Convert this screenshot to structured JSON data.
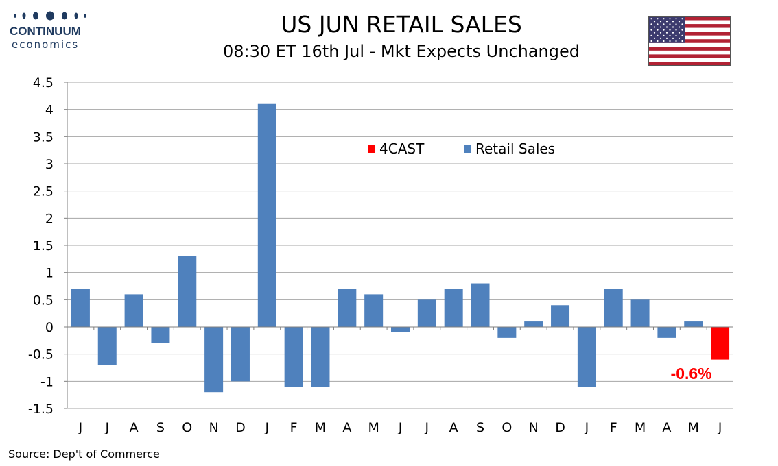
{
  "header": {
    "brand_name": "CONTINUUM",
    "brand_sub": "economics",
    "title": "US JUN RETAIL SALES",
    "subtitle": "08:30 ET 16th Jul - Mkt Expects Unchanged"
  },
  "footer": {
    "source": "Source: Dep't of Commerce"
  },
  "colors": {
    "retail": "#4f81bd",
    "forecast": "#ff0000",
    "brand": "#1f3a5f"
  },
  "icons": {
    "logo": "continuum-economics-logo",
    "flag": "us-flag-icon"
  },
  "chart_data": {
    "type": "bar",
    "categories": [
      "J",
      "J",
      "A",
      "S",
      "O",
      "N",
      "D",
      "J",
      "F",
      "M",
      "A",
      "M",
      "J",
      "J",
      "A",
      "S",
      "O",
      "N",
      "D",
      "J",
      "F",
      "M",
      "A",
      "M",
      "J"
    ],
    "series": [
      {
        "name": "Retail Sales",
        "values": [
          0.7,
          -0.7,
          0.6,
          -0.3,
          1.3,
          -1.2,
          -1.0,
          4.1,
          -1.1,
          -1.1,
          0.7,
          0.6,
          -0.1,
          0.5,
          0.7,
          0.8,
          -0.2,
          0.1,
          0.4,
          -1.1,
          0.7,
          0.5,
          -0.2,
          0.1,
          null
        ]
      },
      {
        "name": "4CAST",
        "values": [
          null,
          null,
          null,
          null,
          null,
          null,
          null,
          null,
          null,
          null,
          null,
          null,
          null,
          null,
          null,
          null,
          null,
          null,
          null,
          null,
          null,
          null,
          null,
          null,
          -0.6
        ]
      }
    ],
    "annotations": [
      {
        "category_index": 24,
        "text": "-0.6%"
      }
    ],
    "yticks": [
      "4.5",
      "4",
      "3.5",
      "3",
      "2.5",
      "2",
      "1.5",
      "1",
      "0.5",
      "0",
      "-0.5",
      "-1",
      "-1.5"
    ],
    "ylim": [
      -1.5,
      4.5
    ],
    "grid": true,
    "legend": "top-center"
  }
}
